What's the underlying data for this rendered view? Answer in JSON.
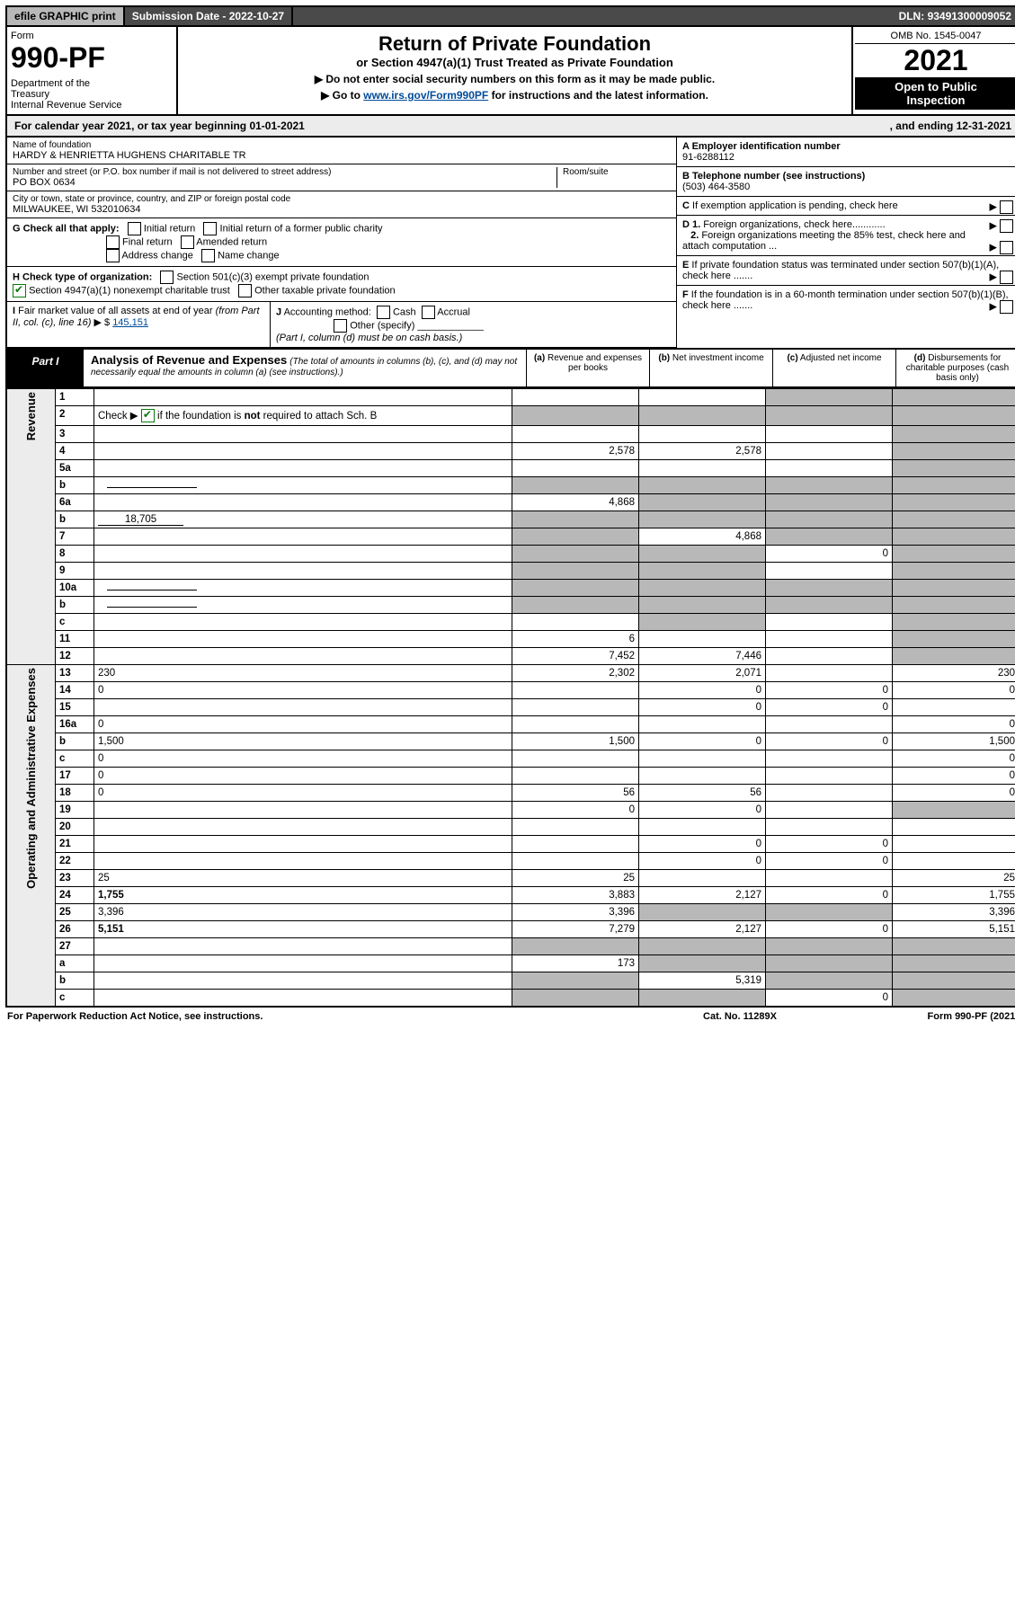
{
  "top": {
    "efile": "efile GRAPHIC print",
    "submission_label": "Submission Date - ",
    "submission_date": "2022-10-27",
    "dln_label": "DLN: ",
    "dln": "93491300009052"
  },
  "header": {
    "form_word": "Form",
    "form_number": "990-PF",
    "dept": "Department of the Treasury\nInternal Revenue Service",
    "title": "Return of Private Foundation",
    "subtitle": "or Section 4947(a)(1) Trust Treated as Private Foundation",
    "instr1": "▶ Do not enter social security numbers on this form as it may be made public.",
    "instr2_pre": "▶ Go to ",
    "instr2_link": "www.irs.gov/Form990PF",
    "instr2_post": " for instructions and the latest information.",
    "omb": "OMB No. 1545-0047",
    "year": "2021",
    "open": "Open to Public Inspection"
  },
  "calyear": {
    "text_pre": "For calendar year 2021, or tax year beginning ",
    "begin": "01-01-2021",
    "mid": " , and ending ",
    "end": "12-31-2021"
  },
  "foundation": {
    "name_label": "Name of foundation",
    "name": "HARDY & HENRIETTA HUGHENS CHARITABLE TR",
    "street_label": "Number and street (or P.O. box number if mail is not delivered to street address)",
    "room_label": "Room/suite",
    "street": "PO BOX 0634",
    "city_label": "City or town, state or province, country, and ZIP or foreign postal code",
    "city": "MILWAUKEE, WI  532010634"
  },
  "right_info": {
    "A_label": "A Employer identification number",
    "A_val": "91-6288112",
    "B_label": "B Telephone number (see instructions)",
    "B_val": "(503) 464-3580",
    "C_label": "C If exemption application is pending, check here",
    "D1_label": "D 1. Foreign organizations, check here............",
    "D2_label": "2. Foreign organizations meeting the 85% test, check here and attach computation ...",
    "E_label": "E  If private foundation status was terminated under section 507(b)(1)(A), check here .......",
    "F_label": "F  If the foundation is in a 60-month termination under section 507(b)(1)(B), check here ......."
  },
  "G": {
    "lead": "G Check all that apply:",
    "opts": [
      "Initial return",
      "Initial return of a former public charity",
      "Final return",
      "Amended return",
      "Address change",
      "Name change"
    ]
  },
  "H": {
    "lead": "H Check type of organization:",
    "opt1": "Section 501(c)(3) exempt private foundation",
    "opt2": "Section 4947(a)(1) nonexempt charitable trust",
    "opt3": "Other taxable private foundation"
  },
  "I": {
    "lead": "I Fair market value of all assets at end of year (from Part II, col. (c), line 16)",
    "amount_prefix": "▶ $",
    "amount": "145,151"
  },
  "J": {
    "lead": "J Accounting method:",
    "opts": [
      "Cash",
      "Accrual",
      "Other (specify)"
    ],
    "note": "(Part I, column (d) must be on cash basis.)"
  },
  "part1": {
    "badge": "Part I",
    "title": "Analysis of Revenue and Expenses",
    "subtitle": "(The total of amounts in columns (b), (c), and (d) may not necessarily equal the amounts in column (a) (see instructions).)",
    "col_a": "(a)  Revenue and expenses per books",
    "col_b": "(b)  Net investment income",
    "col_c": "(c)  Adjusted net income",
    "col_d": "(d)  Disbursements for charitable purposes (cash basis only)"
  },
  "vert": {
    "rev": "Revenue",
    "exp": "Operating and Administrative Expenses"
  },
  "rows": [
    {
      "n": "1",
      "d": "",
      "a": "",
      "b": "",
      "c": "",
      "shade": [
        "c",
        "d"
      ]
    },
    {
      "n": "2",
      "d": "",
      "a": "",
      "b": "",
      "c": "",
      "shade": [
        "a",
        "b",
        "c",
        "d"
      ],
      "check": true
    },
    {
      "n": "3",
      "d": "",
      "a": "",
      "b": "",
      "c": "",
      "shade": [
        "d"
      ]
    },
    {
      "n": "4",
      "d": "",
      "a": "2,578",
      "b": "2,578",
      "c": "",
      "shade": [
        "d"
      ]
    },
    {
      "n": "5a",
      "d": "",
      "a": "",
      "b": "",
      "c": "",
      "shade": [
        "d"
      ]
    },
    {
      "n": "b",
      "d": "",
      "a": "",
      "b": "",
      "c": "",
      "shade": [
        "a",
        "b",
        "c",
        "d"
      ],
      "inline": true
    },
    {
      "n": "6a",
      "d": "",
      "a": "4,868",
      "b": "",
      "c": "",
      "shade": [
        "b",
        "c",
        "d"
      ]
    },
    {
      "n": "b",
      "d": "",
      "inline_val": "18,705",
      "a": "",
      "b": "",
      "c": "",
      "shade": [
        "a",
        "b",
        "c",
        "d"
      ]
    },
    {
      "n": "7",
      "d": "",
      "a": "",
      "b": "4,868",
      "c": "",
      "shade": [
        "a",
        "c",
        "d"
      ]
    },
    {
      "n": "8",
      "d": "",
      "a": "",
      "b": "",
      "c": "0",
      "shade": [
        "a",
        "b",
        "d"
      ]
    },
    {
      "n": "9",
      "d": "",
      "a": "",
      "b": "",
      "c": "",
      "shade": [
        "a",
        "b",
        "d"
      ]
    },
    {
      "n": "10a",
      "d": "",
      "a": "",
      "b": "",
      "c": "",
      "shade": [
        "a",
        "b",
        "c",
        "d"
      ],
      "inline": true
    },
    {
      "n": "b",
      "d": "",
      "a": "",
      "b": "",
      "c": "",
      "shade": [
        "a",
        "b",
        "c",
        "d"
      ],
      "inline": true
    },
    {
      "n": "c",
      "d": "",
      "a": "",
      "b": "",
      "c": "",
      "shade": [
        "b",
        "d"
      ]
    },
    {
      "n": "11",
      "d": "",
      "a": "6",
      "b": "",
      "c": "",
      "shade": [
        "d"
      ]
    },
    {
      "n": "12",
      "d": "",
      "a": "7,452",
      "b": "7,446",
      "c": "",
      "shade": [
        "d"
      ],
      "bold": true
    }
  ],
  "exp_rows": [
    {
      "n": "13",
      "d": "230",
      "a": "2,302",
      "b": "2,071",
      "c": ""
    },
    {
      "n": "14",
      "d": "0",
      "a": "",
      "b": "0",
      "c": "0"
    },
    {
      "n": "15",
      "d": "",
      "a": "",
      "b": "0",
      "c": "0"
    },
    {
      "n": "16a",
      "d": "0",
      "a": "",
      "b": "",
      "c": ""
    },
    {
      "n": "b",
      "d": "1,500",
      "a": "1,500",
      "b": "0",
      "c": "0"
    },
    {
      "n": "c",
      "d": "0",
      "a": "",
      "b": "",
      "c": ""
    },
    {
      "n": "17",
      "d": "0",
      "a": "",
      "b": "",
      "c": ""
    },
    {
      "n": "18",
      "d": "0",
      "a": "56",
      "b": "56",
      "c": ""
    },
    {
      "n": "19",
      "d": "",
      "a": "0",
      "b": "0",
      "c": "",
      "shade": [
        "d"
      ]
    },
    {
      "n": "20",
      "d": "",
      "a": "",
      "b": "",
      "c": ""
    },
    {
      "n": "21",
      "d": "",
      "a": "",
      "b": "0",
      "c": "0"
    },
    {
      "n": "22",
      "d": "",
      "a": "",
      "b": "0",
      "c": "0"
    },
    {
      "n": "23",
      "d": "25",
      "a": "25",
      "b": "",
      "c": ""
    },
    {
      "n": "24",
      "d": "1,755",
      "a": "3,883",
      "b": "2,127",
      "c": "0",
      "bold": true
    },
    {
      "n": "25",
      "d": "3,396",
      "a": "3,396",
      "b": "",
      "c": "",
      "shade": [
        "b",
        "c"
      ]
    },
    {
      "n": "26",
      "d": "5,151",
      "a": "7,279",
      "b": "2,127",
      "c": "0",
      "bold": true
    },
    {
      "n": "27",
      "d": "",
      "a": "",
      "b": "",
      "c": "",
      "shade": [
        "a",
        "b",
        "c",
        "d"
      ]
    },
    {
      "n": "a",
      "d": "",
      "a": "173",
      "b": "",
      "c": "",
      "shade": [
        "b",
        "c",
        "d"
      ],
      "bold": true
    },
    {
      "n": "b",
      "d": "",
      "a": "",
      "b": "5,319",
      "c": "",
      "shade": [
        "a",
        "c",
        "d"
      ],
      "bold": true
    },
    {
      "n": "c",
      "d": "",
      "a": "",
      "b": "",
      "c": "0",
      "shade": [
        "a",
        "b",
        "d"
      ],
      "bold": true
    }
  ],
  "footer": {
    "left": "For Paperwork Reduction Act Notice, see instructions.",
    "mid": "Cat. No. 11289X",
    "right": "Form 990-PF (2021)"
  },
  "colors": {
    "grey_bg": "#b8b8b8",
    "darkgrey": "#4a4a4a",
    "lightgrey": "#ececec",
    "link": "#004b9a",
    "check_green": "#0a7a0a"
  }
}
